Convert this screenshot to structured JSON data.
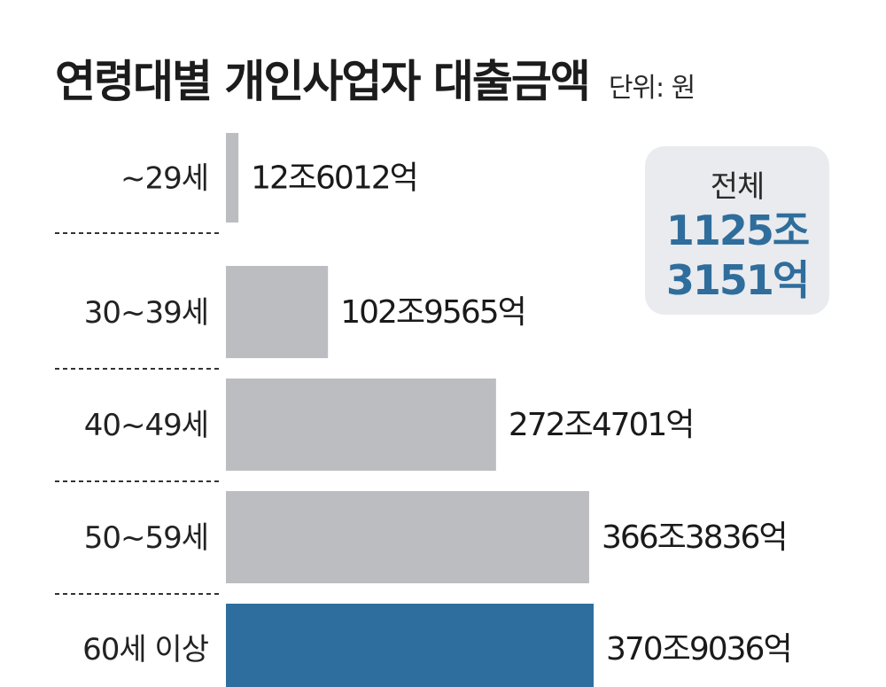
{
  "header": {
    "title": "연령대별 개인사업자 대출금액",
    "unit": "단위: 원"
  },
  "total": {
    "label": "전체",
    "value_line1": "1125조",
    "value_line2": "3151억"
  },
  "colors": {
    "bar_default": "#bcbdc0",
    "bar_highlight": "#2e6e9e",
    "divider": "#333333",
    "total_text": "#2f6d9c"
  },
  "chart_data": {
    "type": "bar",
    "orientation": "horizontal",
    "unit": "원",
    "categories": [
      "~29세",
      "30~39세",
      "40~49세",
      "50~59세",
      "60세 이상"
    ],
    "values": [
      12.6012,
      102.9565,
      272.4701,
      366.3836,
      370.9036
    ],
    "value_scale": "조원",
    "value_labels": [
      "12조6012억",
      "102조9565억",
      "272조4701억",
      "366조3836억",
      "370조9036억"
    ],
    "highlight_index": 4,
    "grid": false
  }
}
